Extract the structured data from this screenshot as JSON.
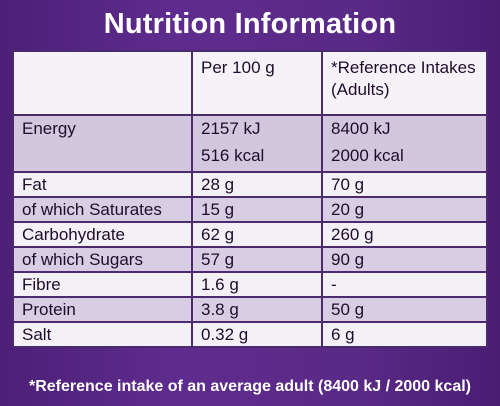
{
  "title": "Nutrition Information",
  "header": {
    "col1": "",
    "col2": "Per 100 g",
    "col3_line1": "*Reference Intakes",
    "col3_line2": "(Adults)"
  },
  "energy": {
    "label": "Energy",
    "per100_kj": "2157 kJ",
    "per100_kcal": "516 kcal",
    "ri_kj": "8400 kJ",
    "ri_kcal": "2000 kcal"
  },
  "rows": [
    {
      "label": "Fat",
      "per100": "28 g",
      "ri": "70 g"
    },
    {
      "label": "of which Saturates",
      "per100": "15 g",
      "ri": "20 g"
    },
    {
      "label": "Carbohydrate",
      "per100": "62 g",
      "ri": "260 g"
    },
    {
      "label": "of which Sugars",
      "per100": "57 g",
      "ri": "90 g"
    },
    {
      "label": "Fibre",
      "per100": "1.6 g",
      "ri": "-"
    },
    {
      "label": "Protein",
      "per100": "3.8 g",
      "ri": "50 g"
    },
    {
      "label": "Salt",
      "per100": "0.32 g",
      "ri": "6 g"
    }
  ],
  "footnote": "*Reference intake of an average adult (8400 kJ / 2000 kcal)",
  "colors": {
    "background": "#5a2a87",
    "row_light": "#f3f0f6",
    "row_shade": "#d8cde2"
  }
}
